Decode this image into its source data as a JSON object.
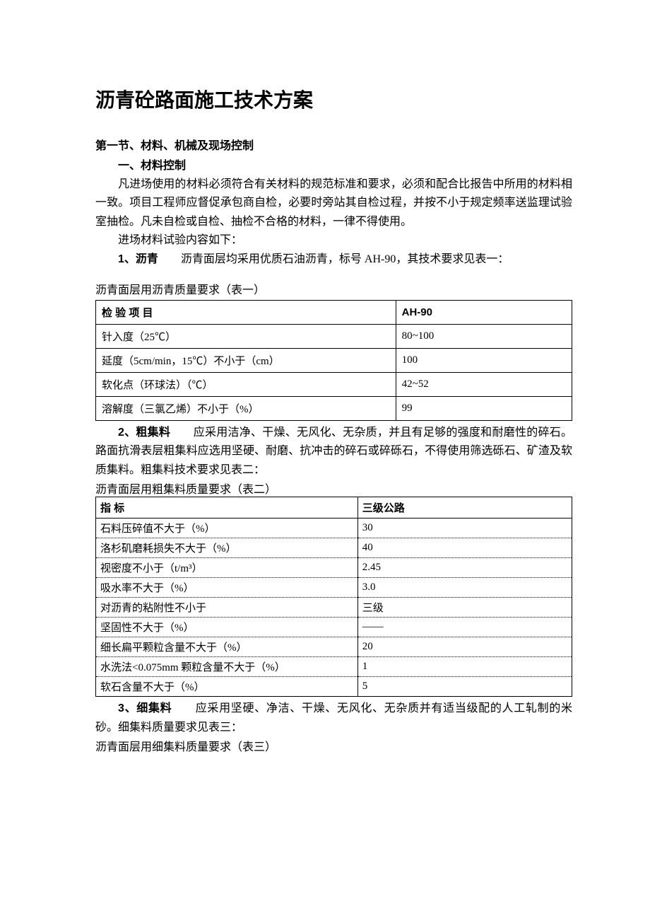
{
  "title": "沥青砼路面施工技术方案",
  "section1": "第一节、材料、机械及现场控制",
  "sub1": "一、材料控制",
  "intro1": "凡进场使用的材料必须符合有关材料的规范标准和要求，必须和配合比报告中所用的材料相一致。项目工程师应督促承包商自检，必要时旁站其自检过程，并按不小于规定频率送监理试验室抽检。凡未自检或自检、抽检不合格的材料，一律不得使用。",
  "intro2": "进场材料试验内容如下：",
  "item1_head": "1、沥青",
  "item1_body": "　　沥青面层均采用优质石油沥青，标号 AH-90，其技术要求见表一：",
  "table1_caption": "沥青面层用沥青质量要求（表一）",
  "table1": {
    "headers": [
      "检 验 项 目",
      "AH-90"
    ],
    "rows": [
      [
        "针入度（25℃）",
        "80~100"
      ],
      [
        "延度（5cm/min，15℃）不小于（cm）",
        "100"
      ],
      [
        "软化点（环球法）（℃）",
        "42~52"
      ],
      [
        "溶解度（三氯乙烯）不小于（%）",
        "99"
      ]
    ]
  },
  "item2_head": "2、粗集料",
  "item2_body": "　　应采用洁净、干燥、无风化、无杂质，并且有足够的强度和耐磨性的碎石。路面抗滑表层粗集料应选用坚硬、耐磨、抗冲击的碎石或碎砾石，不得使用筛选砾石、矿渣及软质集料。粗集料技术要求见表二：",
  "table2_caption": "沥青面层用粗集料质量要求（表二）",
  "table2": {
    "headers": [
      "指 标",
      "三级公路"
    ],
    "rows": [
      [
        "石料压碎值不大于（%）",
        "30"
      ],
      [
        "洛杉矶磨耗损失不大于（%）",
        "40"
      ],
      [
        "视密度不小于（t/m³）",
        "2.45"
      ],
      [
        "吸水率不大于（%）",
        "3.0"
      ],
      [
        "对沥青的粘附性不小于",
        "三级"
      ],
      [
        "坚固性不大于（%）",
        "——"
      ],
      [
        "细长扁平颗粒含量不大于（%）",
        "20"
      ],
      [
        "水洗法<0.075mm 颗粒含量不大于（%）",
        "1"
      ],
      [
        "软石含量不大于（%）",
        "5"
      ]
    ]
  },
  "item3_head": "3、细集料",
  "item3_body": "　　应采用坚硬、净洁、干燥、无风化、无杂质并有适当级配的人工轧制的米砂。细集料质量要求见表三：",
  "table3_caption": "沥青面层用细集料质量要求（表三）"
}
